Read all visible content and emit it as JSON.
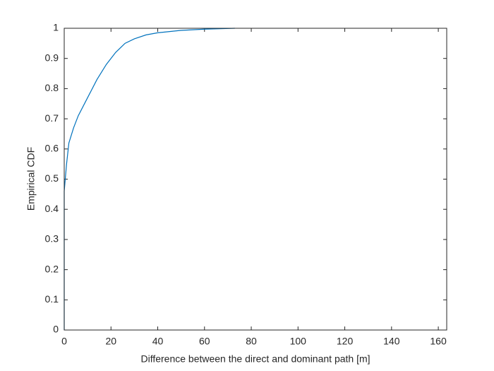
{
  "chart_data": {
    "type": "line",
    "x_label": "Difference between the direct and dominant path [m]",
    "y_label": "Empirical CDF",
    "x": [
      0,
      0,
      1,
      2,
      4,
      6,
      10,
      14,
      18,
      22,
      26,
      30,
      35,
      40,
      50,
      60,
      73
    ],
    "values": [
      0,
      0.46,
      0.55,
      0.62,
      0.67,
      0.71,
      0.77,
      0.83,
      0.88,
      0.92,
      0.95,
      0.965,
      0.978,
      0.985,
      0.993,
      0.997,
      1
    ],
    "color": "#0072bd",
    "xlim": [
      0,
      163.6
    ],
    "xticks": [
      0,
      20,
      40,
      60,
      80,
      100,
      120,
      140,
      160
    ],
    "ylim": [
      0,
      1
    ],
    "yticks": [
      0,
      0.1,
      0.2,
      0.3,
      0.4,
      0.5,
      0.6,
      0.7,
      0.8,
      0.9,
      1
    ]
  }
}
